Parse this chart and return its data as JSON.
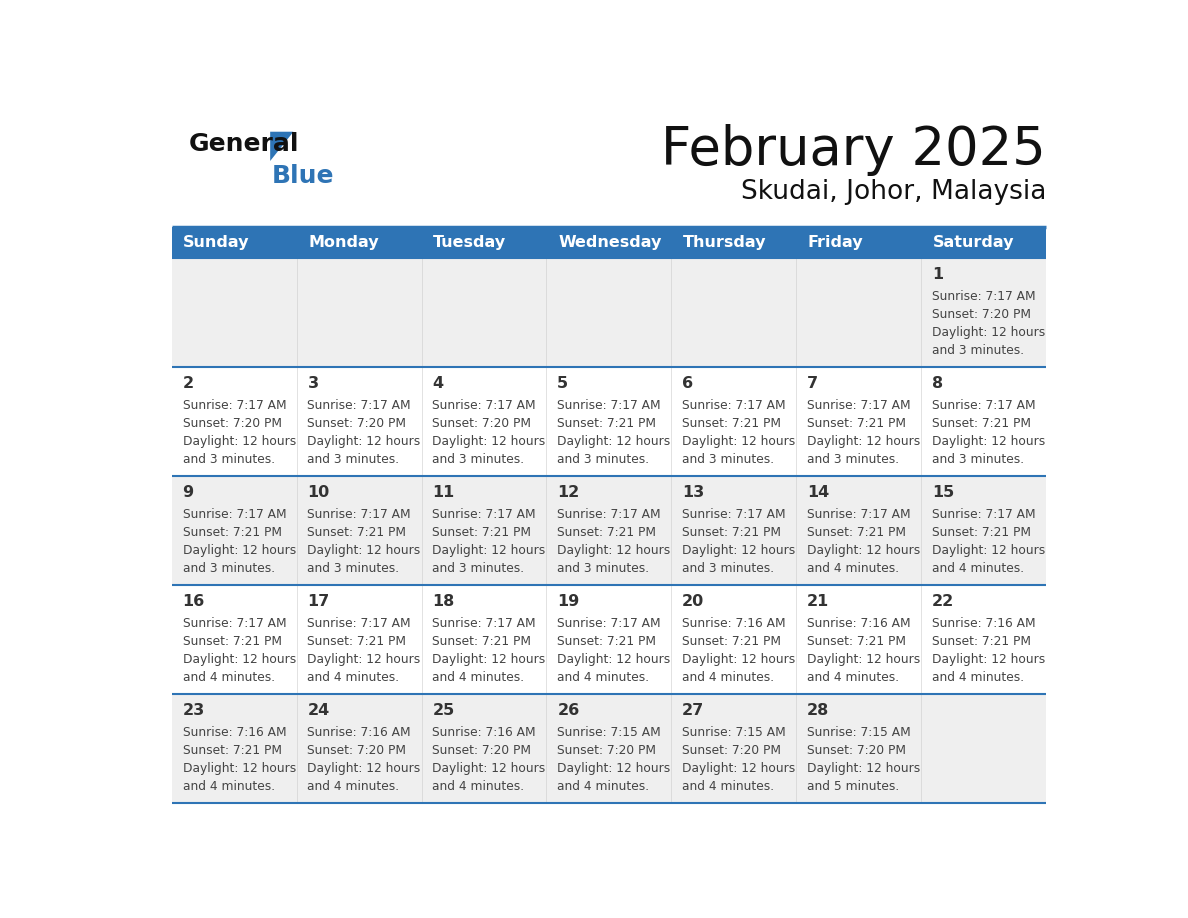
{
  "title": "February 2025",
  "subtitle": "Skudai, Johor, Malaysia",
  "days_of_week": [
    "Sunday",
    "Monday",
    "Tuesday",
    "Wednesday",
    "Thursday",
    "Friday",
    "Saturday"
  ],
  "header_bg": "#2E74B5",
  "header_text_color": "#FFFFFF",
  "row_bg_light": "#EFEFEF",
  "row_bg_white": "#FFFFFF",
  "separator_color": "#2E74B5",
  "day_number_color": "#333333",
  "cell_text_color": "#444444",
  "title_color": "#111111",
  "subtitle_color": "#111111",
  "logo_general_color": "#111111",
  "logo_blue_color": "#2E74B5",
  "logo_triangle_color": "#2E74B5",
  "calendar": [
    [
      {
        "day": null,
        "info": null
      },
      {
        "day": null,
        "info": null
      },
      {
        "day": null,
        "info": null
      },
      {
        "day": null,
        "info": null
      },
      {
        "day": null,
        "info": null
      },
      {
        "day": null,
        "info": null
      },
      {
        "day": 1,
        "info": "Sunrise: 7:17 AM\nSunset: 7:20 PM\nDaylight: 12 hours\nand 3 minutes."
      }
    ],
    [
      {
        "day": 2,
        "info": "Sunrise: 7:17 AM\nSunset: 7:20 PM\nDaylight: 12 hours\nand 3 minutes."
      },
      {
        "day": 3,
        "info": "Sunrise: 7:17 AM\nSunset: 7:20 PM\nDaylight: 12 hours\nand 3 minutes."
      },
      {
        "day": 4,
        "info": "Sunrise: 7:17 AM\nSunset: 7:20 PM\nDaylight: 12 hours\nand 3 minutes."
      },
      {
        "day": 5,
        "info": "Sunrise: 7:17 AM\nSunset: 7:21 PM\nDaylight: 12 hours\nand 3 minutes."
      },
      {
        "day": 6,
        "info": "Sunrise: 7:17 AM\nSunset: 7:21 PM\nDaylight: 12 hours\nand 3 minutes."
      },
      {
        "day": 7,
        "info": "Sunrise: 7:17 AM\nSunset: 7:21 PM\nDaylight: 12 hours\nand 3 minutes."
      },
      {
        "day": 8,
        "info": "Sunrise: 7:17 AM\nSunset: 7:21 PM\nDaylight: 12 hours\nand 3 minutes."
      }
    ],
    [
      {
        "day": 9,
        "info": "Sunrise: 7:17 AM\nSunset: 7:21 PM\nDaylight: 12 hours\nand 3 minutes."
      },
      {
        "day": 10,
        "info": "Sunrise: 7:17 AM\nSunset: 7:21 PM\nDaylight: 12 hours\nand 3 minutes."
      },
      {
        "day": 11,
        "info": "Sunrise: 7:17 AM\nSunset: 7:21 PM\nDaylight: 12 hours\nand 3 minutes."
      },
      {
        "day": 12,
        "info": "Sunrise: 7:17 AM\nSunset: 7:21 PM\nDaylight: 12 hours\nand 3 minutes."
      },
      {
        "day": 13,
        "info": "Sunrise: 7:17 AM\nSunset: 7:21 PM\nDaylight: 12 hours\nand 3 minutes."
      },
      {
        "day": 14,
        "info": "Sunrise: 7:17 AM\nSunset: 7:21 PM\nDaylight: 12 hours\nand 4 minutes."
      },
      {
        "day": 15,
        "info": "Sunrise: 7:17 AM\nSunset: 7:21 PM\nDaylight: 12 hours\nand 4 minutes."
      }
    ],
    [
      {
        "day": 16,
        "info": "Sunrise: 7:17 AM\nSunset: 7:21 PM\nDaylight: 12 hours\nand 4 minutes."
      },
      {
        "day": 17,
        "info": "Sunrise: 7:17 AM\nSunset: 7:21 PM\nDaylight: 12 hours\nand 4 minutes."
      },
      {
        "day": 18,
        "info": "Sunrise: 7:17 AM\nSunset: 7:21 PM\nDaylight: 12 hours\nand 4 minutes."
      },
      {
        "day": 19,
        "info": "Sunrise: 7:17 AM\nSunset: 7:21 PM\nDaylight: 12 hours\nand 4 minutes."
      },
      {
        "day": 20,
        "info": "Sunrise: 7:16 AM\nSunset: 7:21 PM\nDaylight: 12 hours\nand 4 minutes."
      },
      {
        "day": 21,
        "info": "Sunrise: 7:16 AM\nSunset: 7:21 PM\nDaylight: 12 hours\nand 4 minutes."
      },
      {
        "day": 22,
        "info": "Sunrise: 7:16 AM\nSunset: 7:21 PM\nDaylight: 12 hours\nand 4 minutes."
      }
    ],
    [
      {
        "day": 23,
        "info": "Sunrise: 7:16 AM\nSunset: 7:21 PM\nDaylight: 12 hours\nand 4 minutes."
      },
      {
        "day": 24,
        "info": "Sunrise: 7:16 AM\nSunset: 7:20 PM\nDaylight: 12 hours\nand 4 minutes."
      },
      {
        "day": 25,
        "info": "Sunrise: 7:16 AM\nSunset: 7:20 PM\nDaylight: 12 hours\nand 4 minutes."
      },
      {
        "day": 26,
        "info": "Sunrise: 7:15 AM\nSunset: 7:20 PM\nDaylight: 12 hours\nand 4 minutes."
      },
      {
        "day": 27,
        "info": "Sunrise: 7:15 AM\nSunset: 7:20 PM\nDaylight: 12 hours\nand 4 minutes."
      },
      {
        "day": 28,
        "info": "Sunrise: 7:15 AM\nSunset: 7:20 PM\nDaylight: 12 hours\nand 5 minutes."
      },
      {
        "day": null,
        "info": null
      }
    ]
  ]
}
